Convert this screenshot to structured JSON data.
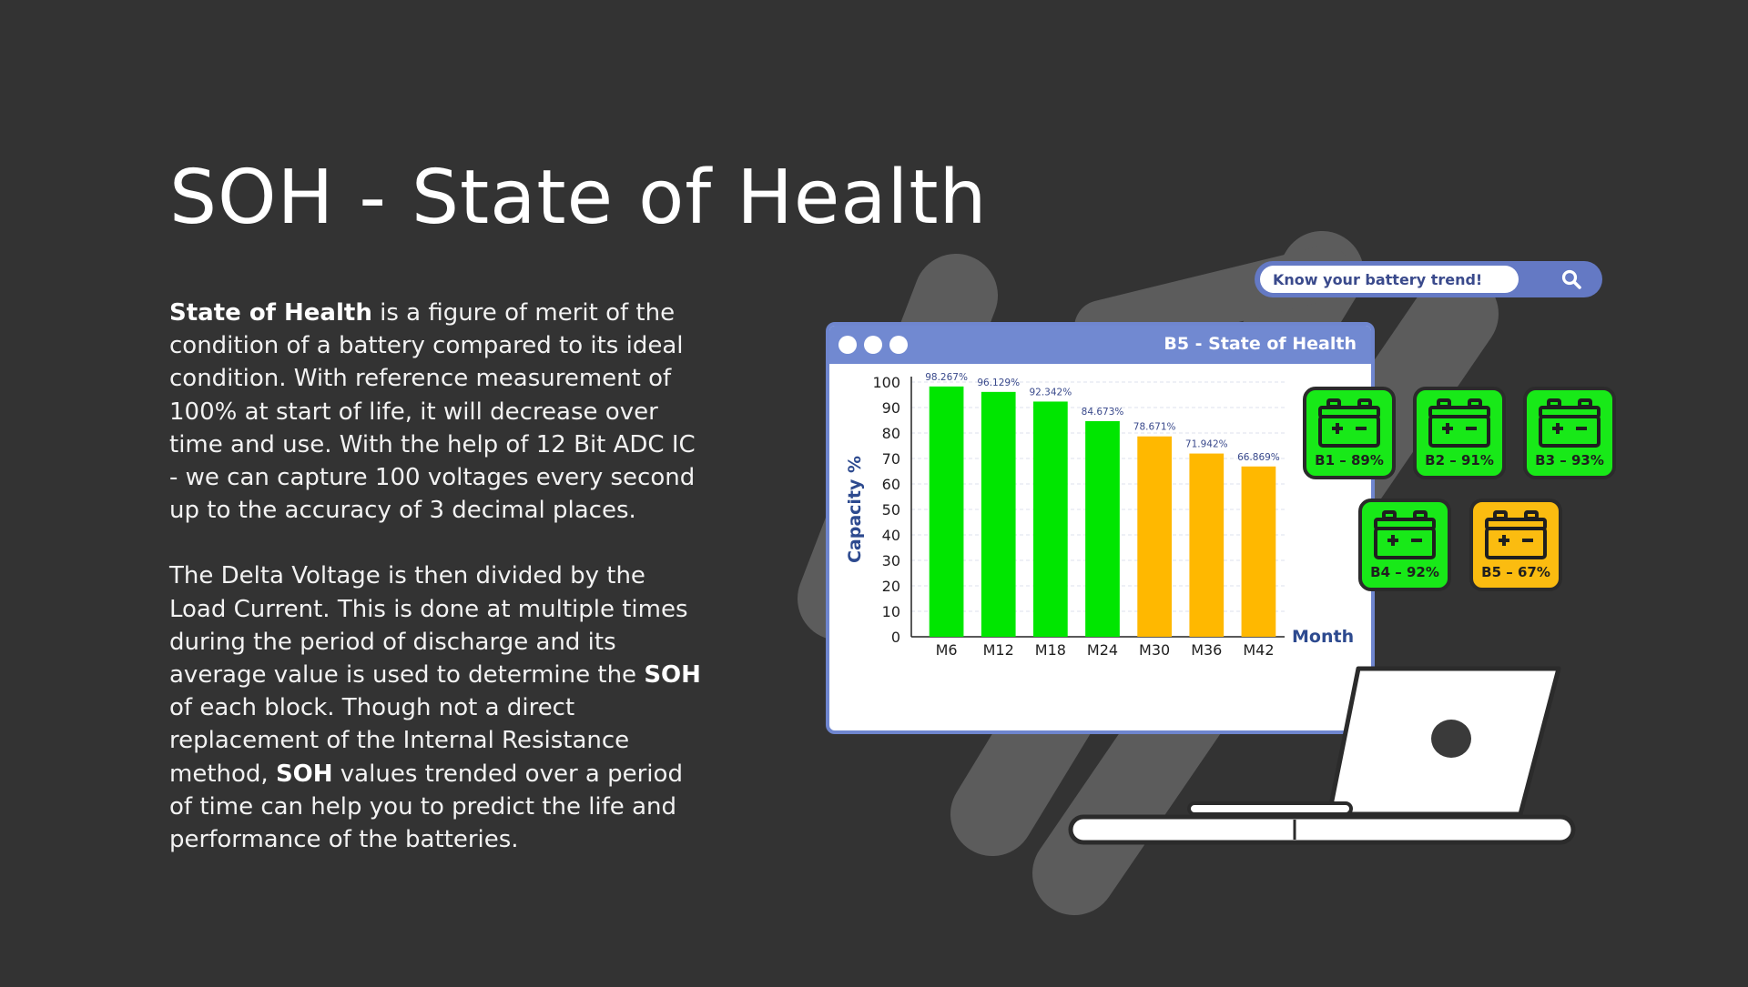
{
  "title": "SOH - State of Health",
  "paragraph1": {
    "bold_lead": "State of Health",
    "text": " is a figure of merit of the condition of a battery compared to its ideal condition. With reference measurement of 100% at start of life, it will decrease over time and use. With the help of 12 Bit ADC IC - we can capture 100 voltages every second up to the accuracy of 3 decimal places."
  },
  "paragraph2": {
    "part1": "The Delta Voltage is then divided by the Load Current. This is done at multiple times during the period of discharge and its average value is used to determine the ",
    "bold1": "SOH",
    "part2": " of each block. Though not a direct replacement of the Internal Resistance method, ",
    "bold2": "SOH",
    "part3": " values trended over a period of time can help you to predict the life and performance of the batteries."
  },
  "search": {
    "placeholder": "Know your battery trend!",
    "icon": "search-icon"
  },
  "window": {
    "title": "B5 - State of Health"
  },
  "batteries": [
    {
      "label": "B1 – 89%",
      "value": 89,
      "color": "#18e918"
    },
    {
      "label": "B2 – 91%",
      "value": 91,
      "color": "#18e918"
    },
    {
      "label": "B3 – 93%",
      "value": 93,
      "color": "#18e918"
    },
    {
      "label": "B4 – 92%",
      "value": 92,
      "color": "#18e918"
    },
    {
      "label": "B5 – 67%",
      "value": 67,
      "color": "#fbbc10"
    }
  ],
  "chart_data": {
    "type": "bar",
    "categories": [
      "M6",
      "M12",
      "M18",
      "M24",
      "M30",
      "M36",
      "M42"
    ],
    "values": [
      98.267,
      96.129,
      92.342,
      84.673,
      78.671,
      71.942,
      66.869
    ],
    "data_labels": [
      "98.267%",
      "96.129%",
      "92.342%",
      "84.673%",
      "78.671%",
      "71.942%",
      "66.869%"
    ],
    "colors": [
      "#00e600",
      "#00e600",
      "#00e600",
      "#00e600",
      "#ffb800",
      "#ffb800",
      "#ffb800"
    ],
    "xlabel": "Month",
    "ylabel": "Capacity %",
    "ylim": [
      0,
      100
    ],
    "yticks": [
      0,
      10,
      20,
      30,
      40,
      50,
      60,
      70,
      80,
      90,
      100
    ],
    "grid": true
  },
  "colors": {
    "background": "#333333",
    "accent": "#6f86cf",
    "green": "#18e918",
    "amber": "#fbbc10"
  }
}
